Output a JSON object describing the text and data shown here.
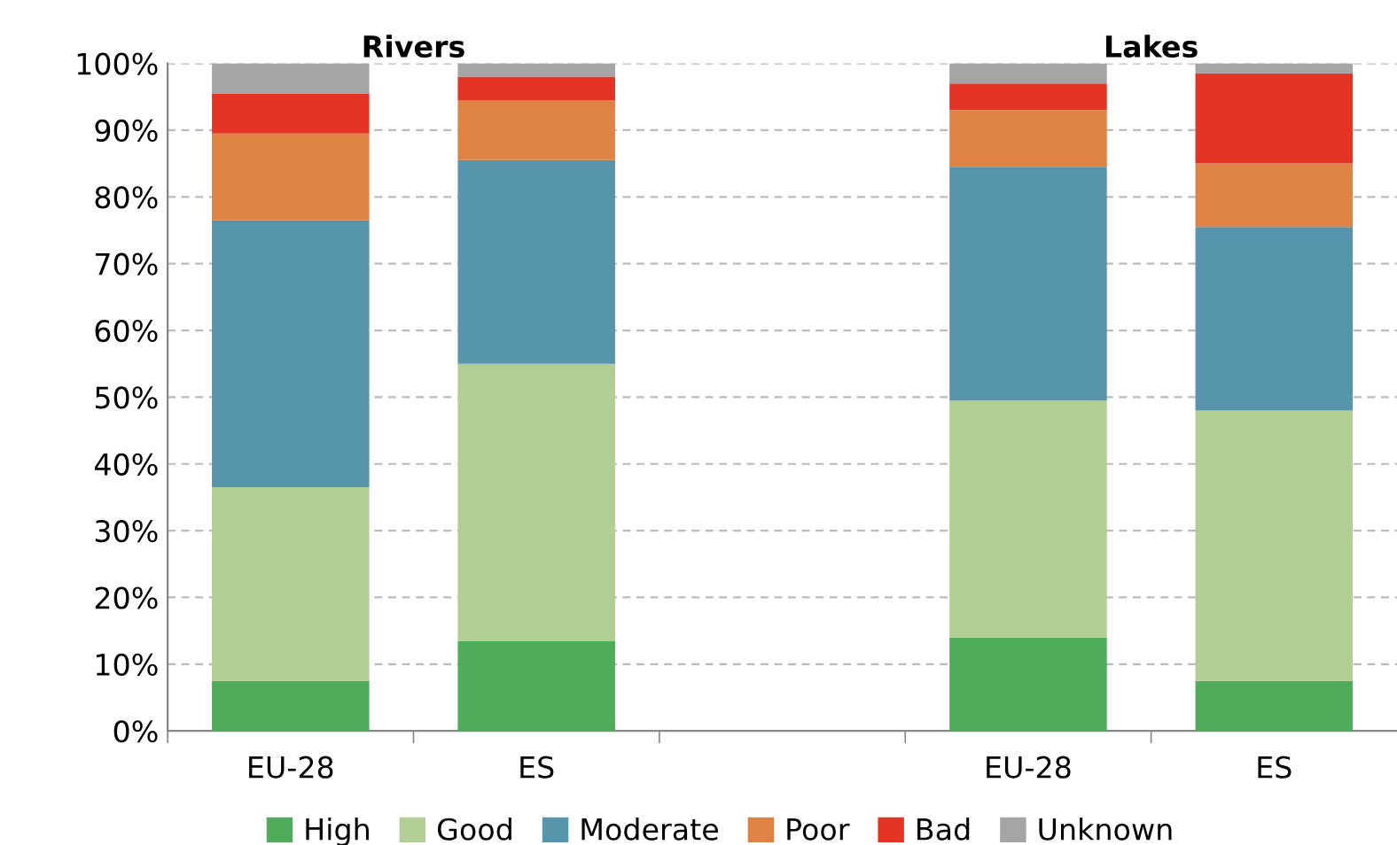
{
  "chart_data": {
    "type": "bar",
    "stacked": true,
    "categories": [
      "EU-28",
      "ES",
      null,
      "EU-28",
      "ES"
    ],
    "series": [
      {
        "name": "High",
        "color": "#4fac5b",
        "values": [
          7.5,
          13.5,
          null,
          14,
          7.5
        ]
      },
      {
        "name": "Good",
        "color": "#b1cf95",
        "values": [
          29,
          41.5,
          null,
          35.5,
          40.5
        ]
      },
      {
        "name": "Moderate",
        "color": "#5795ad",
        "values": [
          40,
          30.5,
          null,
          35,
          27.5
        ]
      },
      {
        "name": "Poor",
        "color": "#df8345",
        "values": [
          13,
          9,
          null,
          8.5,
          9.5
        ]
      },
      {
        "name": "Bad",
        "color": "#e53425",
        "values": [
          6,
          3.5,
          null,
          4,
          13.5
        ]
      },
      {
        "name": "Unknown",
        "color": "#a5a5a5",
        "values": [
          4.5,
          2,
          null,
          3,
          1.5
        ]
      }
    ],
    "annotations": [
      "Rivers",
      "Lakes"
    ],
    "ylim": [
      0,
      100
    ],
    "yticks": [
      {
        "value": 0,
        "label": "0%"
      },
      {
        "value": 10,
        "label": "10%"
      },
      {
        "value": 20,
        "label": "20%"
      },
      {
        "value": 30,
        "label": "30%"
      },
      {
        "value": 40,
        "label": "40%"
      },
      {
        "value": 50,
        "label": "50%"
      },
      {
        "value": 60,
        "label": "60%"
      },
      {
        "value": 70,
        "label": "70%"
      },
      {
        "value": 80,
        "label": "80%"
      },
      {
        "value": 90,
        "label": "90%"
      },
      {
        "value": 100,
        "label": "100%"
      }
    ],
    "grid": "y",
    "legend": "bottom"
  }
}
